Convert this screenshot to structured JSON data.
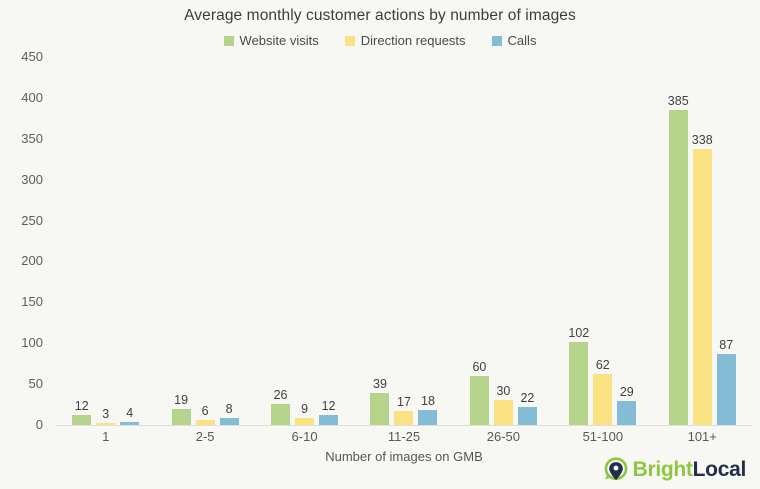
{
  "chart_data": {
    "type": "bar",
    "title": "Average monthly customer actions by number of images",
    "categories": [
      "1",
      "2-5",
      "6-10",
      "11-25",
      "26-50",
      "51-100",
      "101+"
    ],
    "series": [
      {
        "name": "Website visits",
        "color": "#b5d38a",
        "values": [
          12,
          19,
          26,
          39,
          60,
          102,
          385
        ]
      },
      {
        "name": "Direction requests",
        "color": "#fae181",
        "values": [
          3,
          6,
          9,
          17,
          30,
          62,
          338
        ]
      },
      {
        "name": "Calls",
        "color": "#85bcd5",
        "values": [
          4,
          8,
          12,
          18,
          22,
          29,
          87
        ]
      }
    ],
    "xlabel": "Number of images on GMB",
    "ylabel": "",
    "ylim": [
      0,
      450
    ],
    "yticks": [
      0,
      50,
      100,
      150,
      200,
      250,
      300,
      350,
      400,
      450
    ],
    "grid": false,
    "legend_position": "top"
  },
  "branding": {
    "logo_part1": "Bright",
    "logo_part2": "Local",
    "pin_color": "#8dc63f",
    "pin_dark_color": "#232f49"
  },
  "colors": {
    "background": "#f7f7f4",
    "baseline": "#e0ded8",
    "title_text": "#3d3d3d",
    "tick_text": "#5d5d5d"
  }
}
